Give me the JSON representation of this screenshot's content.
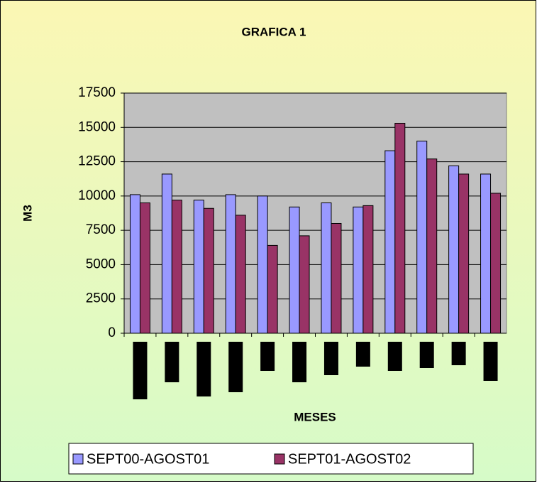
{
  "chart_data": {
    "type": "bar",
    "title": "GRAFICA 1",
    "x_label": "MESES",
    "y_label": "M3",
    "categories": [
      null,
      null,
      null,
      null,
      null,
      null,
      null,
      null,
      null,
      null,
      null,
      null
    ],
    "series": [
      {
        "name": "SEPT00-AGOST01",
        "color": "#9999ff",
        "values": [
          10100,
          11600,
          9700,
          10100,
          10000,
          9200,
          9500,
          9200,
          13300,
          14000,
          12200,
          11600
        ]
      },
      {
        "name": "SEPT01-AGOST02",
        "color": "#993366",
        "values": [
          9500,
          9700,
          9100,
          8600,
          6400,
          7100,
          8000,
          9300,
          15300,
          12700,
          11600,
          10200
        ]
      }
    ],
    "ylim": [
      0,
      17500
    ],
    "yticks": [
      0,
      2500,
      5000,
      7500,
      10000,
      12500,
      15000,
      17500
    ],
    "grid": true,
    "legend": "bottom"
  }
}
